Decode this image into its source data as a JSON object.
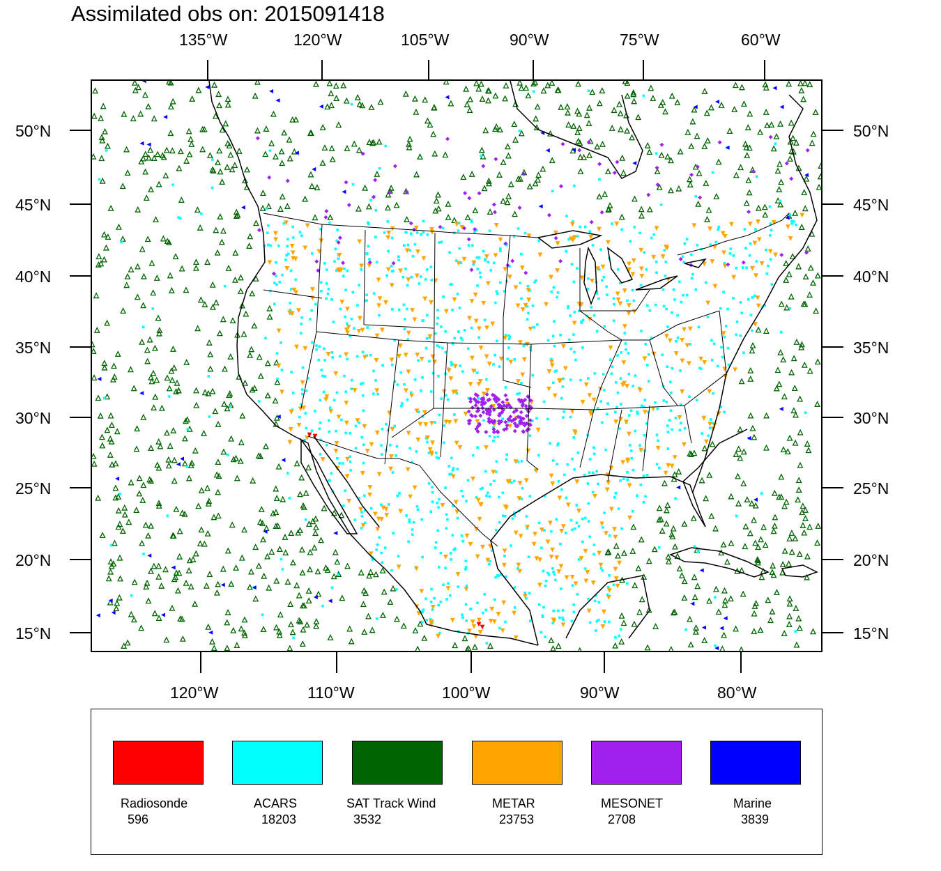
{
  "title": "Assimilated obs on: 2015091418",
  "top_axis_labels": [
    "135°W",
    "120°W",
    "105°W",
    "90°W",
    "75°W",
    "60°W"
  ],
  "bottom_axis_labels": [
    "120°W",
    "110°W",
    "100°W",
    "90°W",
    "80°W"
  ],
  "left_axis_labels": [
    "50°N",
    "45°N",
    "40°N",
    "35°N",
    "30°N",
    "25°N",
    "20°N",
    "15°N"
  ],
  "right_axis_labels": [
    "50°N",
    "45°N",
    "40°N",
    "35°N",
    "30°N",
    "25°N",
    "20°N",
    "15°N"
  ],
  "legend": [
    {
      "name": "Radiosonde",
      "count": "596",
      "color": "#ff0000",
      "marker": "triangle-icon"
    },
    {
      "name": "ACARS",
      "count": "18203",
      "color": "#00ffff",
      "marker": "square-icon"
    },
    {
      "name": "SAT Track Wind",
      "count": "3532",
      "color": "#006400",
      "marker": "triangle-icon"
    },
    {
      "name": "METAR",
      "count": "23753",
      "color": "#ffa500",
      "marker": "down-triangle-icon"
    },
    {
      "name": "MESONET",
      "count": "2708",
      "color": "#a020f0",
      "marker": "diamond-icon"
    },
    {
      "name": "Marine",
      "count": "3839",
      "color": "#0000ff",
      "marker": "left-triangle-icon"
    }
  ]
}
